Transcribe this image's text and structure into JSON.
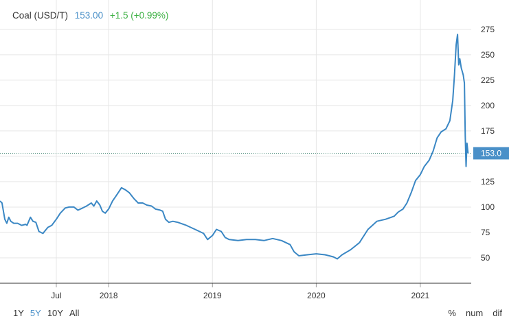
{
  "header": {
    "title": "Coal (USD/T)",
    "price": "153.00",
    "change": "+1.5 (+0.99%)"
  },
  "range_buttons": [
    {
      "label": "1Y",
      "active": false
    },
    {
      "label": "5Y",
      "active": true
    },
    {
      "label": "10Y",
      "active": false
    },
    {
      "label": "All",
      "active": false
    }
  ],
  "right_buttons": [
    "%",
    "num",
    "dif"
  ],
  "colors": {
    "line": "#3a87c4",
    "accent": "#4a90c8",
    "change": "#3cb043",
    "grid": "#e6e6e6"
  },
  "chart_data": {
    "type": "line",
    "title": "",
    "xlabel": "",
    "ylabel": "",
    "ylim": [
      25,
      285
    ],
    "x_ticks": [
      "Jul",
      "2018",
      "2019",
      "2020",
      "2021"
    ],
    "y_ticks": [
      50,
      75,
      100,
      125,
      150,
      175,
      200,
      225,
      250,
      275
    ],
    "current_value": 153.0,
    "current_label": "153.0",
    "grid": true,
    "series": [
      {
        "values": [
          [
            "2016-12-15",
            106
          ],
          [
            "2016-12-22",
            104
          ],
          [
            "2017-01-01",
            88
          ],
          [
            "2017-01-08",
            84
          ],
          [
            "2017-01-15",
            90
          ],
          [
            "2017-01-22",
            86
          ],
          [
            "2017-02-01",
            84
          ],
          [
            "2017-02-15",
            84
          ],
          [
            "2017-03-01",
            82
          ],
          [
            "2017-03-15",
            83
          ],
          [
            "2017-03-20",
            82
          ],
          [
            "2017-04-01",
            90
          ],
          [
            "2017-04-10",
            86
          ],
          [
            "2017-04-20",
            85
          ],
          [
            "2017-05-01",
            76
          ],
          [
            "2017-05-15",
            74
          ],
          [
            "2017-06-01",
            80
          ],
          [
            "2017-06-15",
            82
          ],
          [
            "2017-07-01",
            88
          ],
          [
            "2017-07-15",
            94
          ],
          [
            "2017-08-01",
            99
          ],
          [
            "2017-08-15",
            100
          ],
          [
            "2017-09-01",
            100
          ],
          [
            "2017-09-15",
            97
          ],
          [
            "2017-10-01",
            99
          ],
          [
            "2017-10-15",
            101
          ],
          [
            "2017-11-01",
            104
          ],
          [
            "2017-11-10",
            101
          ],
          [
            "2017-11-20",
            106
          ],
          [
            "2017-12-01",
            102
          ],
          [
            "2017-12-10",
            96
          ],
          [
            "2017-12-20",
            94
          ],
          [
            "2018-01-01",
            98
          ],
          [
            "2018-01-15",
            106
          ],
          [
            "2018-02-01",
            113
          ],
          [
            "2018-02-15",
            119
          ],
          [
            "2018-03-01",
            117
          ],
          [
            "2018-03-15",
            114
          ],
          [
            "2018-04-01",
            108
          ],
          [
            "2018-04-15",
            104
          ],
          [
            "2018-05-01",
            104
          ],
          [
            "2018-05-15",
            102
          ],
          [
            "2018-06-01",
            101
          ],
          [
            "2018-06-15",
            98
          ],
          [
            "2018-07-01",
            97
          ],
          [
            "2018-07-10",
            96
          ],
          [
            "2018-07-20",
            88
          ],
          [
            "2018-08-01",
            85
          ],
          [
            "2018-08-15",
            86
          ],
          [
            "2018-09-01",
            85
          ],
          [
            "2018-10-01",
            82
          ],
          [
            "2018-11-01",
            78
          ],
          [
            "2018-12-01",
            74
          ],
          [
            "2018-12-15",
            68
          ],
          [
            "2019-01-01",
            72
          ],
          [
            "2019-01-15",
            78
          ],
          [
            "2019-02-01",
            76
          ],
          [
            "2019-02-15",
            70
          ],
          [
            "2019-03-01",
            68
          ],
          [
            "2019-04-01",
            67
          ],
          [
            "2019-05-01",
            68
          ],
          [
            "2019-06-01",
            68
          ],
          [
            "2019-07-01",
            67
          ],
          [
            "2019-08-01",
            69
          ],
          [
            "2019-09-01",
            67
          ],
          [
            "2019-10-01",
            63
          ],
          [
            "2019-10-15",
            56
          ],
          [
            "2019-11-01",
            52
          ],
          [
            "2019-12-01",
            53
          ],
          [
            "2020-01-01",
            54
          ],
          [
            "2020-02-01",
            53
          ],
          [
            "2020-03-01",
            51
          ],
          [
            "2020-03-15",
            49
          ],
          [
            "2020-04-01",
            53
          ],
          [
            "2020-05-01",
            58
          ],
          [
            "2020-06-01",
            65
          ],
          [
            "2020-07-01",
            78
          ],
          [
            "2020-08-01",
            86
          ],
          [
            "2020-09-01",
            88
          ],
          [
            "2020-10-01",
            91
          ],
          [
            "2020-10-15",
            95
          ],
          [
            "2020-11-01",
            98
          ],
          [
            "2020-11-15",
            104
          ],
          [
            "2020-12-01",
            115
          ],
          [
            "2020-12-15",
            126
          ],
          [
            "2021-01-01",
            132
          ],
          [
            "2021-01-15",
            140
          ],
          [
            "2021-02-01",
            146
          ],
          [
            "2021-02-15",
            155
          ],
          [
            "2021-03-01",
            168
          ],
          [
            "2021-03-15",
            174
          ],
          [
            "2021-04-01",
            177
          ],
          [
            "2021-04-15",
            185
          ],
          [
            "2021-04-25",
            205
          ],
          [
            "2021-05-01",
            230
          ],
          [
            "2021-05-07",
            260
          ],
          [
            "2021-05-12",
            270
          ],
          [
            "2021-05-16",
            240
          ],
          [
            "2021-05-20",
            246
          ],
          [
            "2021-05-25",
            237
          ],
          [
            "2021-06-01",
            230
          ],
          [
            "2021-06-05",
            222
          ],
          [
            "2021-06-08",
            170
          ],
          [
            "2021-06-11",
            140
          ],
          [
            "2021-06-14",
            163
          ],
          [
            "2021-06-18",
            153
          ]
        ]
      }
    ]
  }
}
